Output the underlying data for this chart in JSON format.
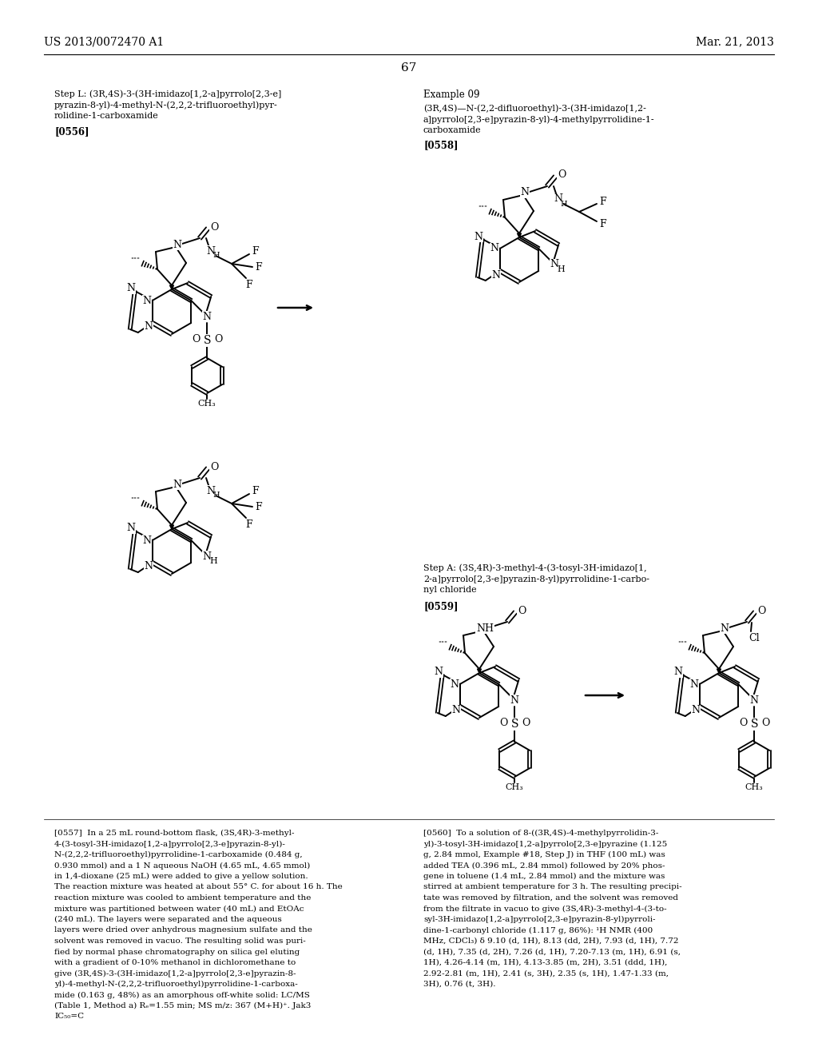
{
  "page_number": "67",
  "header_left": "US 2013/0072470 A1",
  "header_right": "Mar. 21, 2013",
  "background_color": "#ffffff",
  "text_color": "#000000",
  "step_L_line1": "Step L: (3R,4S)-3-(3H-imidazo[1,2-a]pyrrolo[2,3-e]",
  "step_L_line2": "pyrazin-8-yl)-4-methyl-N-(2,2,2-trifluoroethyl)pyr-",
  "step_L_line3": "rolidine-1-carboxamide",
  "ref_0556": "[0556]",
  "example09_title": "Example 09",
  "example09_line1": "(3R,4S)—N-(2,2-difluoroethyl)-3-(3H-imidazo[1,2-",
  "example09_line2": "a]pyrrolo[2,3-e]pyrazin-8-yl)-4-methylpyrrolidine-1-",
  "example09_line3": "carboxamide",
  "ref_0558": "[0558]",
  "step_A_line1": "Step A: (3S,4R)-3-methyl-4-(3-tosyl-3H-imidazo[1,",
  "step_A_line2": "2-a]pyrrolo[2,3-e]pyrazin-8-yl)pyrrolidine-1-carbo-",
  "step_A_line3": "nyl chloride",
  "ref_0559": "[0559]",
  "para_0557_lines": [
    "[0557]  In a 25 mL round-bottom flask, (3S,4R)-3-methyl-",
    "4-(3-tosyl-3H-imidazo[1,2-a]pyrrolo[2,3-e]pyrazin-8-yl)-",
    "N-(2,2,2-trifluoroethyl)pyrrolidine-1-carboxamide (0.484 g,",
    "0.930 mmol) and a 1 N aqueous NaOH (4.65 mL, 4.65 mmol)",
    "in 1,4-dioxane (25 mL) were added to give a yellow solution.",
    "The reaction mixture was heated at about 55° C. for about 16 h. The",
    "reaction mixture was cooled to ambient temperature and the",
    "mixture was partitioned between water (40 mL) and EtOAc",
    "(240 mL). The layers were separated and the aqueous",
    "layers were dried over anhydrous magnesium sulfate and the",
    "solvent was removed in vacuo. The resulting solid was puri-",
    "fied by normal phase chromatography on silica gel eluting",
    "with a gradient of 0-10% methanol in dichloromethane to",
    "give (3R,4S)-3-(3H-imidazo[1,2-a]pyrrolo[2,3-e]pyrazin-8-",
    "yl)-4-methyl-N-(2,2,2-trifluoroethyl)pyrrolidine-1-carboxa-",
    "mide (0.163 g, 48%) as an amorphous off-white solid: LC/MS",
    "(Table 1, Method a) Rₑ=1.55 min; MS m/z: 367 (M+H)⁺. Jak3",
    "IC₅₀=C"
  ],
  "para_0560_lines": [
    "[0560]  To a solution of 8-((3R,4S)-4-methylpyrrolidin-3-",
    "yl)-3-tosyl-3H-imidazo[1,2-a]pyrrolo[2,3-e]pyrazine (1.125",
    "g, 2.84 mmol, Example #18, Step J) in THF (100 mL) was",
    "added TEA (0.396 mL, 2.84 mmol) followed by 20% phos-",
    "gene in toluene (1.4 mL, 2.84 mmol) and the mixture was",
    "stirred at ambient temperature for 3 h. The resulting precipi-",
    "tate was removed by filtration, and the solvent was removed",
    "from the filtrate in vacuo to give (3S,4R)-3-methyl-4-(3-to-",
    "syl-3H-imidazo[1,2-a]pyrrolo[2,3-e]pyrazin-8-yl)pyrroli-",
    "dine-1-carbonyl chloride (1.117 g, 86%): ¹H NMR (400",
    "MHz, CDCl₃) δ 9.10 (d, 1H), 8.13 (dd, 2H), 7.93 (d, 1H), 7.72",
    "(d, 1H), 7.35 (d, 2H), 7.26 (d, 1H), 7.20-7.13 (m, 1H), 6.91 (s,",
    "1H), 4.26-4.14 (m, 1H), 4.13-3.85 (m, 2H), 3.51 (ddd, 1H),",
    "2.92-2.81 (m, 1H), 2.41 (s, 3H), 2.35 (s, 1H), 1.47-1.33 (m,",
    "3H), 0.76 (t, 3H)."
  ]
}
